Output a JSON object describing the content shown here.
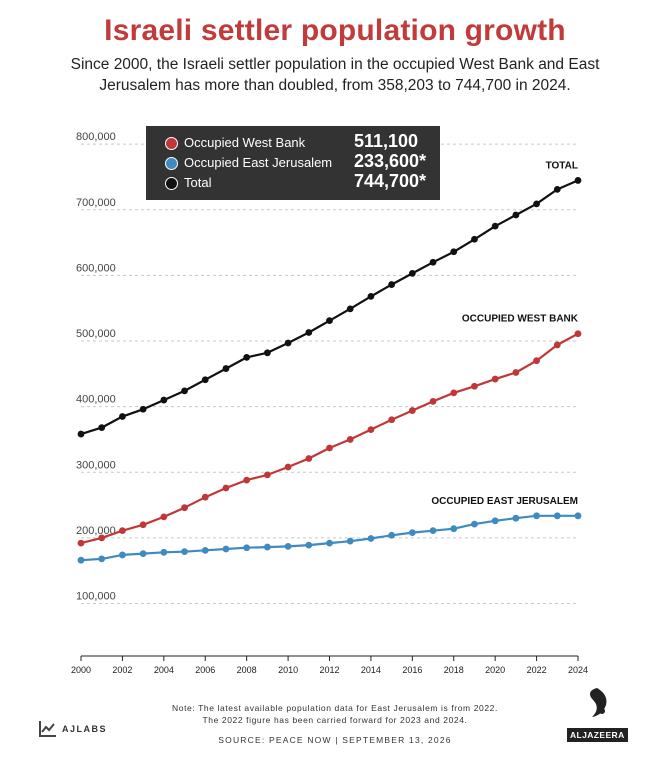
{
  "header": {
    "title": "Israeli settler population growth",
    "subtitle": "Since 2000, the Israeli settler population in the occupied West Bank and East Jerusalem has more than doubled, from 358,203 to 744,700 in 2024."
  },
  "legend": [
    {
      "name": "Occupied West Bank",
      "value": "511,100",
      "color": "#c0373a"
    },
    {
      "name": "Occupied East Jerusalem",
      "value": "233,600*",
      "color": "#3f8ac0"
    },
    {
      "name": "Total",
      "value": "744,700*",
      "color": "#111111"
    }
  ],
  "footer": {
    "note_line1": "Note: The latest available population data for East Jerusalem is from 2022.",
    "note_line2": "The 2022 figure has been carried forward for 2023 and 2024.",
    "source": "SOURCE: PEACE NOW  |  SEPTEMBER 13, 2026",
    "brand_left": "AJLABS",
    "brand_right": "ALJAZEERA"
  },
  "chart_data": {
    "type": "line",
    "x": [
      2000,
      2001,
      2002,
      2003,
      2004,
      2005,
      2006,
      2007,
      2008,
      2009,
      2010,
      2011,
      2012,
      2013,
      2014,
      2015,
      2016,
      2017,
      2018,
      2019,
      2020,
      2021,
      2022,
      2023,
      2024
    ],
    "series": [
      {
        "name": "TOTAL",
        "color": "#111111",
        "values": [
          358203,
          368000,
          385000,
          396000,
          410000,
          424000,
          441000,
          458000,
          475000,
          482000,
          497000,
          513000,
          531000,
          549000,
          568000,
          586000,
          603000,
          620000,
          636000,
          655000,
          675000,
          692000,
          709000,
          731000,
          744700
        ]
      },
      {
        "name": "OCCUPIED WEST BANK",
        "color": "#c0373a",
        "values": [
          192000,
          200000,
          211000,
          220000,
          232000,
          246000,
          262000,
          276000,
          288000,
          296000,
          308000,
          321000,
          337000,
          350000,
          365000,
          380000,
          394000,
          408000,
          421000,
          431000,
          442000,
          452000,
          470000,
          494000,
          511100
        ]
      },
      {
        "name": "OCCUPIED EAST JERUSALEM",
        "color": "#3f8ac0",
        "values": [
          166000,
          168000,
          174000,
          176000,
          178000,
          179000,
          181000,
          183000,
          185000,
          186000,
          187000,
          189000,
          192000,
          195000,
          199000,
          204000,
          208000,
          211000,
          214000,
          221000,
          226000,
          230000,
          233600,
          233600,
          233600
        ]
      }
    ],
    "xticks": [
      2000,
      2002,
      2004,
      2006,
      2008,
      2010,
      2012,
      2014,
      2016,
      2018,
      2020,
      2022,
      2024
    ],
    "yticks": [
      100000,
      200000,
      300000,
      400000,
      500000,
      600000,
      700000,
      800000
    ],
    "ytick_labels": [
      "100,000",
      "200,000",
      "300,000",
      "400,000",
      "500,000",
      "600,000",
      "700,000",
      "800,000"
    ],
    "xlim": [
      2000,
      2024
    ],
    "ylim": [
      20000,
      820000
    ],
    "grid": "dashed horizontal",
    "legend_placement": "top-left"
  }
}
